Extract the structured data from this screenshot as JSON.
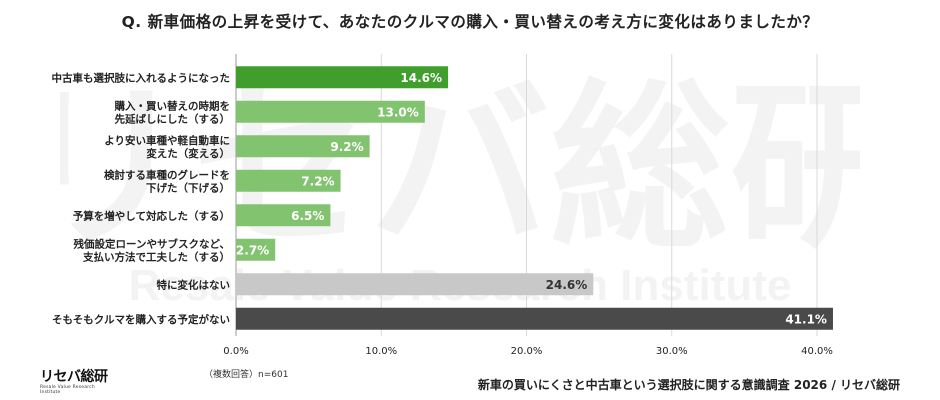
{
  "page": {
    "title": "Q. 新車価格の上昇を受けて、あなたのクルマの購入・買い替えの考え方に変化はありましたか？",
    "note": "（複数回答）n=601",
    "source": "新車の買いにくさと中古車という選択肢に関する意識調査 2026 / リセバ総研",
    "logo_text": "リセバ総研",
    "logo_sub": "Resale Value Research Institute",
    "watermark_text": "リセバ総研",
    "watermark_sub": "Resale Value Research Institute"
  },
  "chart_data": {
    "type": "bar",
    "orientation": "horizontal",
    "categories": [
      [
        "中古車も選択肢に入れるようになった"
      ],
      [
        "購入・買い替えの時期を",
        "先延ばしにした（する）"
      ],
      [
        "より安い車種や軽自動車に",
        "変えた（変える）"
      ],
      [
        "検討する車種のグレードを",
        "下げた（下げる）"
      ],
      [
        "予算を増やして対応した（する）"
      ],
      [
        "残価設定ローンやサブスクなど、",
        "支払い方法で工夫した（する）"
      ],
      [
        "特に変化はない"
      ],
      [
        "そもそもクルマを購入する予定がない"
      ]
    ],
    "values": [
      14.6,
      13.0,
      9.2,
      7.2,
      6.5,
      2.7,
      24.6,
      41.1
    ],
    "value_labels": [
      "14.6%",
      "13.0%",
      "9.2%",
      "7.2%",
      "6.5%",
      "2.7%",
      "24.6%",
      "41.1%"
    ],
    "colors": [
      "#3f9e2c",
      "#82c36f",
      "#82c36f",
      "#82c36f",
      "#82c36f",
      "#82c36f",
      "#c8c8c8",
      "#4a4a4a"
    ],
    "value_label_colors": [
      "#ffffff",
      "#ffffff",
      "#ffffff",
      "#ffffff",
      "#ffffff",
      "#ffffff",
      "#333333",
      "#ffffff"
    ],
    "xlim": [
      0,
      40
    ],
    "xticks": [
      0,
      10,
      20,
      30,
      40
    ],
    "xtick_labels": [
      "0.0%",
      "10.0%",
      "20.0%",
      "30.0%",
      "40.0%"
    ],
    "grid": true
  }
}
